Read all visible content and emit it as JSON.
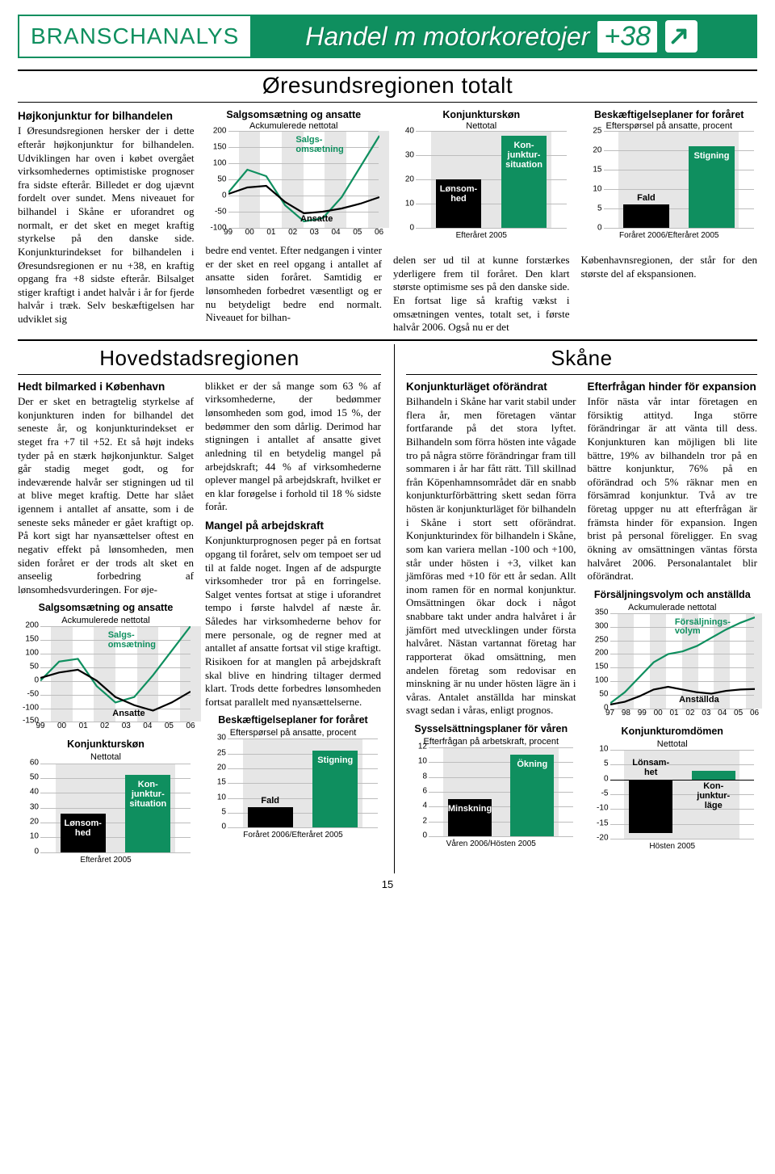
{
  "banner": {
    "left": "BRANSCHANALYS",
    "title": "Handel m motorkoretojer",
    "badge": "+38",
    "arrow_color": "#0f8f5f"
  },
  "colors": {
    "green": "#0f8f5f",
    "black": "#000000",
    "grey_grid": "#bdbdbd",
    "grey_band": "#e6e6e6",
    "grey_bar": "#cfcfcf"
  },
  "section_totalt_title": "Øresundsregionen totalt",
  "totalt_col1": {
    "lead": "Højkonjunktur for bilhandelen",
    "text": "I Øresundsregionen hersker der i dette efterår højkonjunktur for bilhandelen. Udviklingen har oven i købet overgået virksomhedernes optimistiske prognoser fra sidste efterår. Billedet er dog ujævnt fordelt over sundet. Mens niveauet for bilhandel i Skåne er uforandret og normalt, er det sket en meget kraftig styrkelse på den danske side. Konjunkturindekset for bilhandelen i Øresundsregionen er nu +38, en kraftig opgang fra +8 sidste efterår. Bilsalget stiger kraftigt i andet halvår i år for fjerde halvår i træk. Selv beskæftigelsen har udviklet sig"
  },
  "totalt_col2_text": "bedre end ventet. Efter nedgangen i vinter er der sket en reel opgang i antallet af ansatte siden foråret. Samtidig er lønsomheden forbedret væsentligt og er nu betydeligt bedre end normalt. Niveauet for bilhan-",
  "totalt_col3_text": "delen ser ud til at kunne forstærkes yderligere frem til foråret. Den klart største optimisme ses på den danske side. En fortsat lige så kraftig vækst i omsætningen ventes, totalt set, i første halvår 2006. Også nu er det",
  "totalt_col4_text": "Københavnsregionen, der står for den største del af ekspansionen.",
  "chart_tot_lines": {
    "title": "Salgsomsætning og ansatte",
    "subtitle": "Ackumulerede nettotal",
    "y_ticks": [
      200,
      150,
      100,
      50,
      0,
      -50,
      -100
    ],
    "x_labels": [
      "99",
      "00",
      "01",
      "02",
      "03",
      "04",
      "05",
      "06"
    ],
    "height": 120,
    "annot_green": "Salgs-\nomsætning",
    "annot_black": "Ansatte",
    "bands": [
      [
        0.5,
        1.5
      ],
      [
        2.5,
        3.5
      ],
      [
        4.5,
        5.5
      ],
      [
        6.5,
        7.5
      ]
    ],
    "series": {
      "green": {
        "color": "#0f8f5f",
        "values": [
          10,
          80,
          60,
          -30,
          -80,
          -70,
          -5,
          90,
          185
        ]
      },
      "black": {
        "color": "#000000",
        "values": [
          5,
          25,
          30,
          -20,
          -55,
          -50,
          -40,
          -25,
          -5
        ]
      }
    }
  },
  "chart_tot_bars": {
    "title": "Konjunkturskøn",
    "subtitle": "Nettotal",
    "y_ticks": [
      40,
      30,
      20,
      10,
      0
    ],
    "height": 120,
    "xlabel": "Efteråret 2005",
    "bars": [
      {
        "label": "Lønsom-\nhed",
        "value": 20,
        "color": "#000000",
        "text_color": "#ffffff"
      },
      {
        "label": "Kon-\njunktur-\nsituation",
        "value": 38,
        "color": "#0f8f5f",
        "text_color": "#ffffff"
      }
    ]
  },
  "chart_tot_emp": {
    "title": "Beskæftigelseplaner for foråret",
    "subtitle": "Efterspørsel på ansatte, procent",
    "y_ticks": [
      25,
      20,
      15,
      10,
      5,
      0
    ],
    "height": 120,
    "xlabel": "Foråret 2006/Efteråret 2005",
    "bars": [
      {
        "label": "Fald",
        "value": 6,
        "color": "#000000",
        "label_outside": true,
        "label_color": "#000"
      },
      {
        "label": "Stigning",
        "value": 21,
        "color": "#0f8f5f",
        "label_outside": false,
        "label_color": "#fff"
      }
    ]
  },
  "hoved_title": "Hovedstadsregionen",
  "skane_title": "Skåne",
  "hoved_left": {
    "lead": "Hedt bilmarked i København",
    "text": "Der er sket en betragtelig styrkelse af konjunkturen inden for bilhandel det seneste år, og konjunkturindekset er steget fra +7 til +52. Et så højt indeks tyder på en stærk højkonjunktur. Salget går stadig meget godt, og for indeværende halvår ser stigningen ud til at blive meget kraftig. Dette har slået igennem i antallet af ansatte, som i de seneste seks måneder er gået kraftigt op. På kort sigt har nyansættelser oftest en negativ effekt på lønsomheden, men siden foråret er der trods alt sket en anseelig forbedring af lønsomhedsvurderingen. For øje-"
  },
  "hoved_right_p1": "blikket er der så mange som 63 % af virksomhederne, der bedømmer lønsomheden som god, imod 15 %, der bedømmer den som dårlig. Derimod har stigningen i antallet af ansatte givet anledning til en betydelig mangel på arbejdskraft; 44 % af virksomhederne oplever mangel på arbejdskraft, hvilket er en klar forøgelse i forhold til 18 % sidste forår.",
  "hoved_right_h2": "Mangel på arbejdskraft",
  "hoved_right_p2": "Konjunkturprognosen peger på en fortsat opgang til foråret, selv om tempoet ser ud til at falde noget. Ingen af de adspurgte virksomheder tror på en forringelse. Salget ventes fortsat at stige i uforandret tempo i første halvdel af næste år. Således har virksomhederne behov for mere personale, og de regner med at antallet af ansatte fortsat vil stige kraftigt. Risikoen for at manglen på arbejdskraft skal blive en hindring tiltager dermed klart. Trods dette forbedres lønsomheden fortsat parallelt med nyansættelserne.",
  "skane_left": {
    "lead": "Konjunkturläget oförändrat",
    "text": "Bilhandeln i Skåne har varit stabil under flera år, men företagen väntar fortfarande på det stora lyftet. Bilhandeln som förra hösten inte vågade tro på några större förändringar fram till sommaren i år har fått rätt. Till skillnad från Köpenhamnsområdet där en snabb konjunkturförbättring skett sedan förra hösten är konjunkturläget för bilhandeln i Skåne i stort sett oförändrat. Konjunkturindex för bilhandeln i Skåne, som kan variera mellan -100 och +100, står under hösten i +3, vilket kan jämföras med +10 för ett år sedan. Allt inom ramen för en normal konjunktur. Omsättningen ökar dock i något snabbare takt under andra halvåret i år jämfört med utvecklingen under första halvåret. Nästan vartannat företag har rapporterat ökad omsättning, men andelen företag som redovisar en minskning är nu under hösten lägre än i våras. Antalet anställda har minskat svagt sedan i våras, enligt prognos."
  },
  "skane_right_h1": "Efterfrågan hinder för expansion",
  "skane_right_p1": "Inför nästa vår intar företagen en försiktig attityd. Inga större förändringar är att vänta till dess. Konjunkturen kan möjligen bli lite bättre, 19% av bilhandeln tror på en bättre konjunktur, 76% på en oförändrad och 5% räknar men en försämrad konjunktur. Två av tre företag uppger nu att efterfrågan är främsta hinder för expansion. Ingen brist på personal föreligger. En svag ökning av omsättningen väntas första halvåret 2006. Personalantalet blir oförändrat.",
  "chart_hoved_lines": {
    "title": "Salgsomsætning og ansatte",
    "subtitle": "Ackumulerede nettotal",
    "y_ticks": [
      200,
      150,
      100,
      50,
      0,
      -50,
      -100,
      -150
    ],
    "x_labels": [
      "99",
      "00",
      "01",
      "02",
      "03",
      "04",
      "05",
      "06"
    ],
    "height": 118,
    "annot_green": "Salgs-\nomsætning",
    "annot_black": "Ansatte",
    "bands": [
      [
        0.5,
        1.5
      ],
      [
        2.5,
        3.5
      ],
      [
        4.5,
        5.5
      ],
      [
        6.5,
        7.5
      ]
    ],
    "series": {
      "green": {
        "color": "#0f8f5f",
        "values": [
          0,
          70,
          80,
          -20,
          -80,
          -60,
          20,
          110,
          200
        ]
      },
      "black": {
        "color": "#000000",
        "values": [
          10,
          30,
          40,
          0,
          -60,
          -90,
          -110,
          -80,
          -40
        ]
      }
    }
  },
  "chart_hoved_bars": {
    "title": "Konjunkturskøn",
    "subtitle": "Nettotal",
    "y_ticks": [
      60,
      50,
      40,
      30,
      20,
      10,
      0
    ],
    "height": 110,
    "xlabel": "Efteråret 2005",
    "bars": [
      {
        "label": "Lønsom-\nhed",
        "value": 26,
        "color": "#000000",
        "text_color": "#ffffff"
      },
      {
        "label": "Kon-\njunktur-\nsituation",
        "value": 52,
        "color": "#0f8f5f",
        "text_color": "#ffffff"
      }
    ]
  },
  "chart_hoved_emp": {
    "title": "Beskæftigelseplaner for foråret",
    "subtitle": "Efterspørsel på ansatte, procent",
    "y_ticks": [
      30,
      25,
      20,
      15,
      10,
      5,
      0
    ],
    "height": 110,
    "xlabel": "Foråret 2006/Efteråret 2005",
    "bars": [
      {
        "label": "Fald",
        "value": 7,
        "color": "#000000",
        "label_outside": true,
        "label_color": "#000"
      },
      {
        "label": "Stigning",
        "value": 26,
        "color": "#0f8f5f",
        "label_outside": false,
        "label_color": "#fff"
      }
    ]
  },
  "chart_skane_syss": {
    "title": "Sysselsättningsplaner för våren",
    "subtitle": "Efterfrågan på arbetskraft, procent",
    "y_ticks": [
      12,
      10,
      8,
      6,
      4,
      2,
      0
    ],
    "height": 110,
    "xlabel": "Våren 2006/Hösten 2005",
    "bars": [
      {
        "label": "Minskning",
        "value": 5,
        "color": "#000000",
        "label_outside": false,
        "label_color": "#fff"
      },
      {
        "label": "Ökning",
        "value": 11,
        "color": "#0f8f5f",
        "label_outside": false,
        "label_color": "#fff"
      }
    ]
  },
  "chart_skane_lines": {
    "title": "Försäljningsvolym och anställda",
    "subtitle": "Ackumulerade nettotal",
    "y_ticks": [
      350,
      300,
      250,
      200,
      150,
      100,
      50,
      0
    ],
    "x_labels": [
      "97",
      "98",
      "99",
      "00",
      "01",
      "02",
      "03",
      "04",
      "05",
      "06"
    ],
    "height": 118,
    "annot_green": "Försäljnings-\nvolym",
    "annot_black": "Anställda",
    "bands": [
      [
        0.5,
        1.5
      ],
      [
        2.5,
        3.5
      ],
      [
        4.5,
        5.5
      ],
      [
        6.5,
        7.5
      ],
      [
        8.5,
        9.5
      ]
    ],
    "series": {
      "green": {
        "color": "#0f8f5f",
        "values": [
          20,
          60,
          115,
          170,
          200,
          210,
          230,
          260,
          290,
          315,
          335
        ]
      },
      "black": {
        "color": "#000000",
        "values": [
          15,
          25,
          45,
          70,
          80,
          70,
          60,
          55,
          65,
          70,
          72
        ]
      }
    }
  },
  "chart_skane_bars": {
    "title": "Konjunkturomdömen",
    "subtitle": "Nettotal",
    "y_ticks": [
      10,
      5,
      0,
      -5,
      -10,
      -15,
      -20
    ],
    "height": 110,
    "xlabel": "Hösten 2005",
    "zero_index": 2,
    "bars": [
      {
        "label": "Lönsam-\nhet",
        "value": -18,
        "color": "#000000",
        "label_color": "#000",
        "label_outside": true,
        "label_side": "top"
      },
      {
        "label": "Kon-\njunktur-\nläge",
        "value": 3,
        "color": "#0f8f5f",
        "label_color": "#000",
        "label_outside": true,
        "label_side": "bottom"
      }
    ]
  },
  "page_number": "15"
}
